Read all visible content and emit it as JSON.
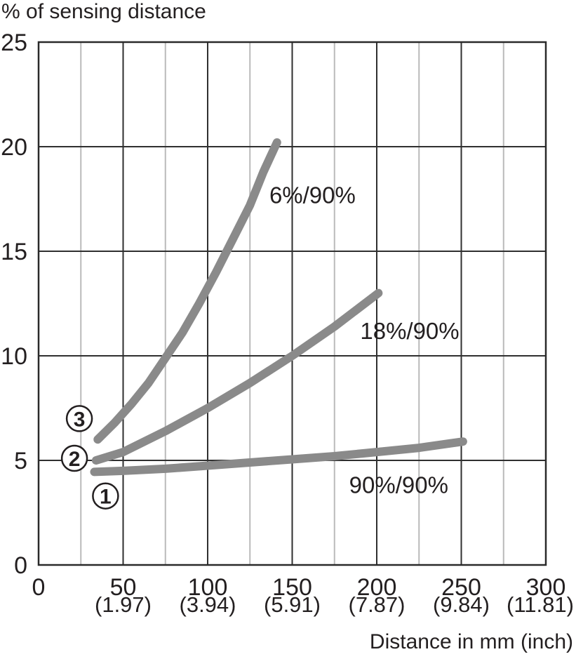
{
  "chart_data": {
    "type": "line",
    "title": "",
    "ylabel": "% of sensing distance",
    "xlabel": "Distance in mm (inch)",
    "xlim": [
      0,
      300
    ],
    "ylim": [
      0,
      25
    ],
    "x_major_step": 50,
    "x_minor_step": 25,
    "y_major_step": 5,
    "grid": "dark major grid both axes; light minor vertical lines every 25 mm; no minor horizontals",
    "legend": "none",
    "x_ticks": [
      {
        "value": 0,
        "label": "0",
        "inch": ""
      },
      {
        "value": 50,
        "label": "50",
        "inch": "(1.97)"
      },
      {
        "value": 100,
        "label": "100",
        "inch": "(3.94)"
      },
      {
        "value": 150,
        "label": "150",
        "inch": "(5.91)"
      },
      {
        "value": 200,
        "label": "200",
        "inch": "(7.87)"
      },
      {
        "value": 250,
        "label": "250",
        "inch": "(9.84)"
      },
      {
        "value": 300,
        "label": "300",
        "inch": "(11.81)"
      }
    ],
    "y_ticks": [
      {
        "value": 0,
        "label": "0"
      },
      {
        "value": 5,
        "label": "5"
      },
      {
        "value": 10,
        "label": "10"
      },
      {
        "value": 15,
        "label": "15"
      },
      {
        "value": 20,
        "label": "20"
      },
      {
        "value": 25,
        "label": "25"
      }
    ],
    "series": [
      {
        "name": "6%/90%",
        "callout": "3",
        "points": [
          [
            35,
            6.0
          ],
          [
            45,
            6.8
          ],
          [
            55,
            7.7
          ],
          [
            65,
            8.7
          ],
          [
            75,
            9.9
          ],
          [
            85,
            11.1
          ],
          [
            95,
            12.5
          ],
          [
            105,
            14.0
          ],
          [
            115,
            15.6
          ],
          [
            125,
            17.2
          ],
          [
            133,
            18.8
          ],
          [
            141,
            20.2
          ]
        ]
      },
      {
        "name": "18%/90%",
        "callout": "2",
        "points": [
          [
            34,
            5.0
          ],
          [
            50,
            5.4
          ],
          [
            75,
            6.4
          ],
          [
            100,
            7.5
          ],
          [
            125,
            8.7
          ],
          [
            150,
            10.0
          ],
          [
            175,
            11.4
          ],
          [
            201,
            13.0
          ]
        ]
      },
      {
        "name": "90%/90%",
        "callout": "1",
        "points": [
          [
            33,
            4.45
          ],
          [
            50,
            4.5
          ],
          [
            75,
            4.6
          ],
          [
            100,
            4.75
          ],
          [
            125,
            4.9
          ],
          [
            150,
            5.05
          ],
          [
            175,
            5.2
          ],
          [
            200,
            5.4
          ],
          [
            225,
            5.6
          ],
          [
            251,
            5.9
          ]
        ]
      }
    ],
    "series_labels": [
      {
        "text": "6%/90%",
        "x": 162,
        "y": 17.7
      },
      {
        "text": "18%/90%",
        "x": 219.5,
        "y": 11.2
      },
      {
        "text": "90%/90%",
        "x": 213,
        "y": 3.85
      }
    ],
    "callouts": [
      {
        "text": "3",
        "x": 24.1,
        "y": 7.0
      },
      {
        "text": "2",
        "x": 21.2,
        "y": 5.1
      },
      {
        "text": "1",
        "x": 39.6,
        "y": 3.3
      }
    ],
    "colors": {
      "curve": "#8a8a8a",
      "grid_major": "#2f2f2f",
      "grid_minor": "#bababa",
      "border": "#2a2a2a",
      "text": "#231f20",
      "background": "#ffffff"
    }
  }
}
